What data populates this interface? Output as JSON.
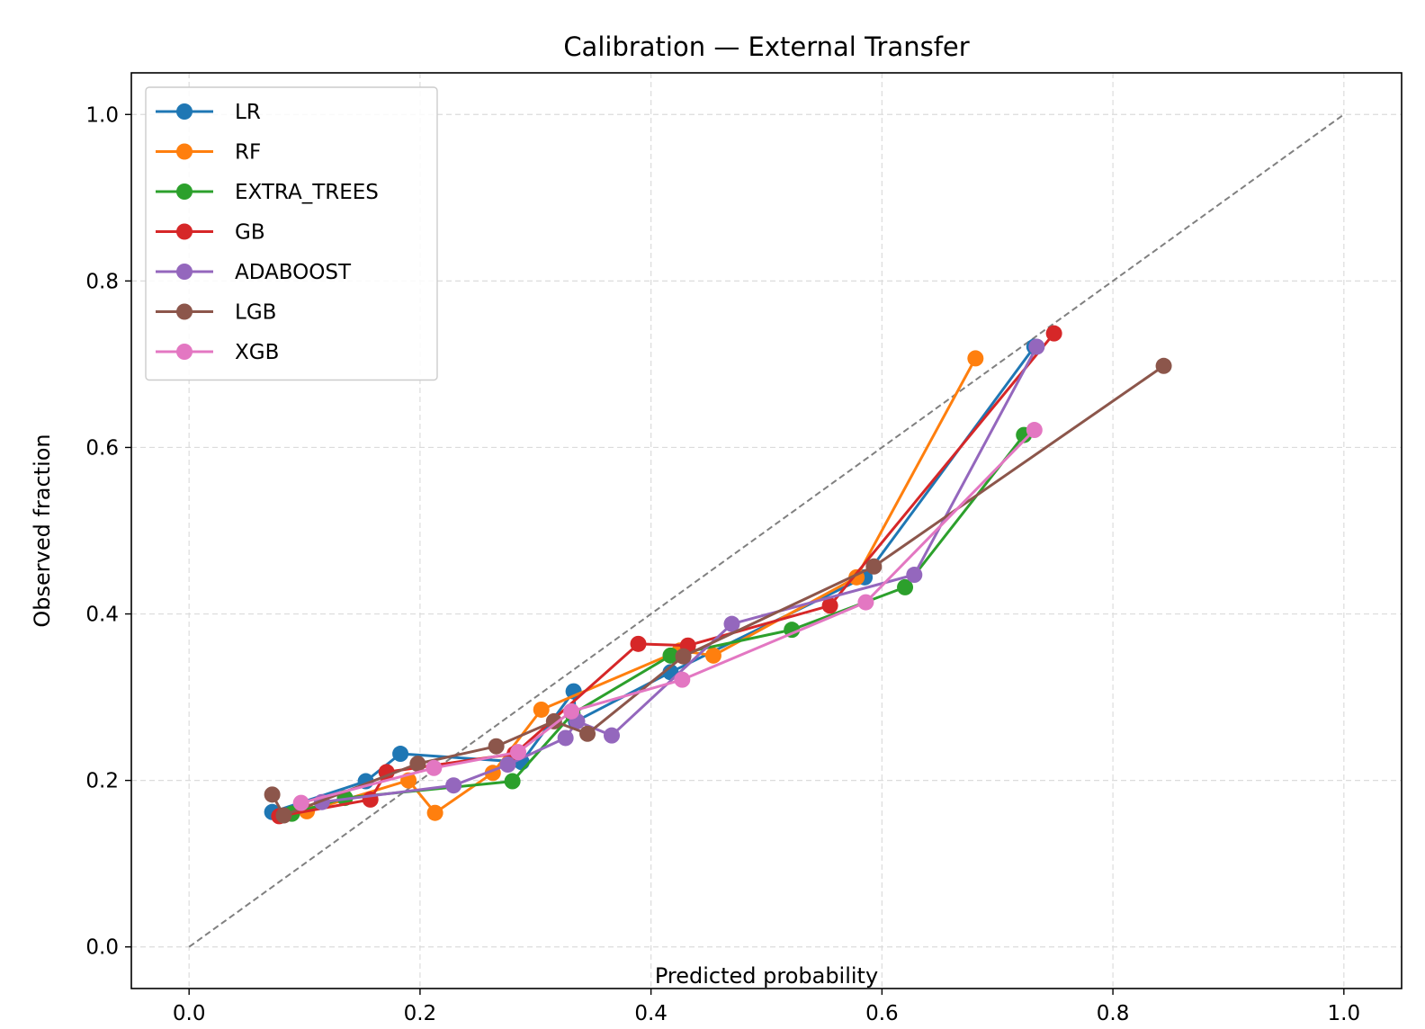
{
  "chart_data": {
    "type": "line",
    "title": "Calibration — External Transfer",
    "xlabel": "Predicted probability",
    "ylabel": "Observed fraction",
    "xlim": [
      -0.05,
      1.05
    ],
    "ylim": [
      -0.05,
      1.05
    ],
    "xticks": [
      0.0,
      0.2,
      0.4,
      0.6,
      0.8,
      1.0
    ],
    "yticks": [
      0.0,
      0.2,
      0.4,
      0.6,
      0.8,
      1.0
    ],
    "xtick_labels": [
      "0.0",
      "0.2",
      "0.4",
      "0.6",
      "0.8",
      "1.0"
    ],
    "ytick_labels": [
      "0.0",
      "0.2",
      "0.4",
      "0.6",
      "0.8",
      "1.0"
    ],
    "grid": true,
    "legend_position": "upper-left",
    "reference_line": {
      "x": [
        0,
        1
      ],
      "y": [
        0,
        1
      ],
      "style": "dashed",
      "color": "#808080"
    },
    "series": [
      {
        "name": "LR",
        "color": "#1f77b4",
        "x": [
          0.072,
          0.153,
          0.183,
          0.288,
          0.333,
          0.335,
          0.417,
          0.585,
          0.732
        ],
        "y": [
          0.162,
          0.199,
          0.232,
          0.222,
          0.307,
          0.271,
          0.33,
          0.444,
          0.721
        ]
      },
      {
        "name": "RF",
        "color": "#ff7f0e",
        "x": [
          0.102,
          0.19,
          0.213,
          0.263,
          0.305,
          0.425,
          0.454,
          0.578,
          0.681
        ],
        "y": [
          0.163,
          0.2,
          0.161,
          0.209,
          0.285,
          0.356,
          0.35,
          0.444,
          0.707
        ]
      },
      {
        "name": "EXTRA_TREES",
        "color": "#2ca02c",
        "x": [
          0.089,
          0.135,
          0.28,
          0.332,
          0.417,
          0.522,
          0.62,
          0.723
        ],
        "y": [
          0.16,
          0.179,
          0.199,
          0.28,
          0.35,
          0.381,
          0.432,
          0.615
        ],
        "hidden_x": [],
        "hidden_y": []
      },
      {
        "name": "GB",
        "color": "#d62728",
        "x": [
          0.078,
          0.157,
          0.171,
          0.282,
          0.389,
          0.432,
          0.555,
          0.749
        ],
        "y": [
          0.157,
          0.177,
          0.21,
          0.232,
          0.364,
          0.362,
          0.41,
          0.737
        ]
      },
      {
        "name": "ADABOOST",
        "color": "#9467bd",
        "x": [
          0.115,
          0.229,
          0.276,
          0.326,
          0.336,
          0.366,
          0.47,
          0.628,
          0.734
        ],
        "y": [
          0.174,
          0.194,
          0.219,
          0.251,
          0.271,
          0.254,
          0.388,
          0.447,
          0.721
        ]
      },
      {
        "name": "LGB",
        "color": "#8c564b",
        "x": [
          0.072,
          0.082,
          0.198,
          0.266,
          0.316,
          0.345,
          0.428,
          0.593,
          0.844
        ],
        "y": [
          0.183,
          0.158,
          0.22,
          0.241,
          0.271,
          0.256,
          0.349,
          0.457,
          0.698
        ]
      },
      {
        "name": "XGB",
        "color": "#e377c2",
        "x": [
          0.097,
          0.212,
          0.285,
          0.331,
          0.427,
          0.586,
          0.732
        ],
        "y": [
          0.173,
          0.215,
          0.234,
          0.283,
          0.321,
          0.414,
          0.621
        ]
      }
    ]
  }
}
